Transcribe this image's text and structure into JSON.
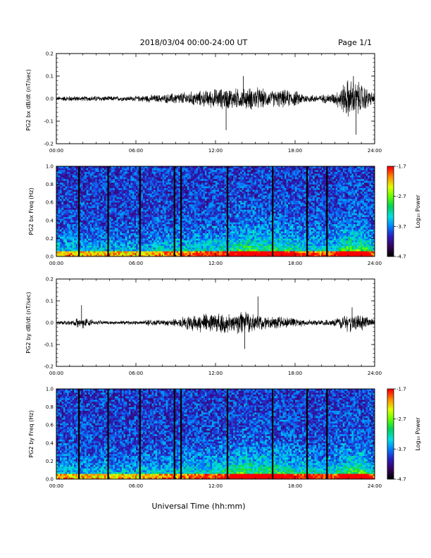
{
  "header": {
    "date_range": "2018/03/04  00:00-24:00 UT",
    "page": "Page 1/1"
  },
  "footer": {
    "xlabel": "Universal Time (hh:mm)"
  },
  "colorbar": {
    "label": "Log₁₀ Power",
    "ticks": [
      "-1.7",
      "-2.7",
      "-3.7",
      "-4.7"
    ],
    "tick_values": [
      -1.7,
      -2.7,
      -3.7,
      -4.7
    ],
    "range": [
      -4.7,
      -1.7
    ],
    "colors": [
      "#000000",
      "#3a0060",
      "#2a1fc0",
      "#0080ff",
      "#00e0e0",
      "#00d060",
      "#60ff00",
      "#e0ff00",
      "#ff9000",
      "#ff0000"
    ]
  },
  "chart_data": [
    {
      "type": "line",
      "panel": "bx-wave",
      "ylabel": "PG2 bx dB/dt (nT/sec)",
      "xlim": [
        0,
        24
      ],
      "ylim": [
        -0.2,
        0.2
      ],
      "xticks": [
        "00:00",
        "06:00",
        "12:00",
        "18:00",
        "24:00"
      ],
      "yticks": [
        "-0.2",
        "-0.1",
        "0.0",
        "0.1",
        "0.2"
      ],
      "x_hours": [
        0,
        1,
        2,
        3,
        4,
        5,
        6,
        7,
        8,
        9,
        10,
        11,
        12,
        13,
        14,
        15,
        16,
        17,
        18,
        19,
        20,
        21,
        22,
        23,
        24
      ],
      "amplitude": [
        0.01,
        0.015,
        0.012,
        0.015,
        0.012,
        0.013,
        0.013,
        0.02,
        0.02,
        0.03,
        0.035,
        0.04,
        0.05,
        0.055,
        0.05,
        0.06,
        0.04,
        0.045,
        0.04,
        0.02,
        0.02,
        0.03,
        0.1,
        0.08,
        0.02
      ],
      "spikes": [
        {
          "x": 12.8,
          "y": -0.14
        },
        {
          "x": 14.1,
          "y": 0.1
        },
        {
          "x": 22.4,
          "y": 0.1
        },
        {
          "x": 22.6,
          "y": -0.16
        }
      ]
    },
    {
      "type": "heatmap",
      "panel": "bx-spectrogram",
      "ylabel": "PG2 bx Freq (Hz)",
      "xlim": [
        0,
        24
      ],
      "ylim": [
        0,
        1.0
      ],
      "xticks": [
        "00:00",
        "06:00",
        "12:00",
        "18:00",
        "24:00"
      ],
      "yticks": [
        "0.0",
        "0.2",
        "0.4",
        "0.6",
        "0.8",
        "1.0"
      ],
      "zlabel": "Log₁₀ Power",
      "zlim": [
        -4.7,
        -1.7
      ],
      "x_hours": [
        0,
        2,
        4,
        6,
        8,
        10,
        12,
        13,
        14,
        15,
        16,
        17,
        18,
        19,
        20,
        21,
        22,
        23,
        24
      ],
      "activity": [
        0.5,
        0.45,
        0.45,
        0.45,
        0.5,
        0.55,
        0.6,
        0.65,
        0.8,
        0.8,
        0.75,
        0.75,
        0.65,
        0.6,
        0.55,
        0.6,
        0.85,
        0.9,
        0.5
      ],
      "gaps_hours": [
        1.7,
        3.9,
        6.3,
        8.9,
        9.4,
        12.9,
        16.3,
        18.9,
        20.4
      ]
    },
    {
      "type": "line",
      "panel": "by-wave",
      "ylabel": "PG2 by dB/dt (nT/sec)",
      "xlim": [
        0,
        24
      ],
      "ylim": [
        -0.2,
        0.2
      ],
      "xticks": [
        "00:00",
        "06:00",
        "12:00",
        "18:00",
        "24:00"
      ],
      "yticks": [
        "-0.2",
        "-0.1",
        "0.0",
        "0.1",
        "0.2"
      ],
      "x_hours": [
        0,
        1,
        2,
        3,
        4,
        5,
        6,
        7,
        8,
        9,
        10,
        11,
        12,
        13,
        14,
        15,
        16,
        17,
        18,
        19,
        20,
        21,
        22,
        23,
        24
      ],
      "amplitude": [
        0.01,
        0.012,
        0.03,
        0.012,
        0.01,
        0.01,
        0.01,
        0.015,
        0.015,
        0.02,
        0.04,
        0.05,
        0.05,
        0.05,
        0.06,
        0.045,
        0.03,
        0.03,
        0.025,
        0.015,
        0.015,
        0.02,
        0.05,
        0.04,
        0.015
      ],
      "spikes": [
        {
          "x": 1.9,
          "y": 0.08
        },
        {
          "x": 14.2,
          "y": -0.12
        },
        {
          "x": 15.2,
          "y": 0.12
        },
        {
          "x": 22.3,
          "y": 0.07
        }
      ]
    },
    {
      "type": "heatmap",
      "panel": "by-spectrogram",
      "ylabel": "PG2 by Freq (Hz)",
      "xlim": [
        0,
        24
      ],
      "ylim": [
        0,
        1.0
      ],
      "xticks": [
        "00:00",
        "06:00",
        "12:00",
        "18:00",
        "24:00"
      ],
      "yticks": [
        "0.0",
        "0.2",
        "0.4",
        "0.6",
        "0.8",
        "1.0"
      ],
      "zlabel": "Log₁₀ Power",
      "zlim": [
        -4.7,
        -1.7
      ],
      "x_hours": [
        0,
        2,
        4,
        6,
        8,
        10,
        12,
        13,
        14,
        15,
        16,
        17,
        18,
        19,
        20,
        21,
        22,
        23,
        24
      ],
      "activity": [
        0.5,
        0.45,
        0.45,
        0.45,
        0.5,
        0.55,
        0.6,
        0.7,
        0.85,
        0.8,
        0.8,
        0.75,
        0.65,
        0.65,
        0.55,
        0.6,
        0.85,
        0.9,
        0.5
      ],
      "gaps_hours": [
        1.7,
        3.9,
        6.3,
        8.9,
        9.4,
        12.9,
        16.3,
        18.9,
        20.4
      ]
    }
  ]
}
